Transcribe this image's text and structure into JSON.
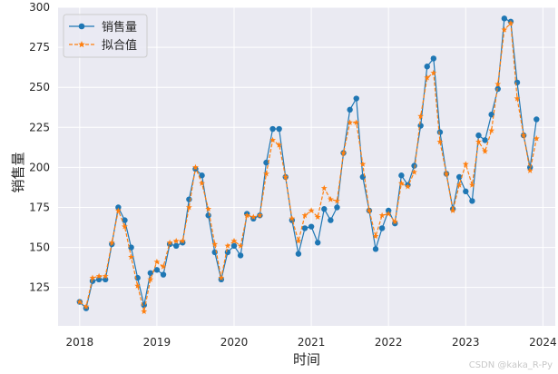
{
  "chart_data": {
    "type": "line",
    "xlabel": "时间",
    "ylabel": "销售量",
    "xlim": [
      2017.72,
      2024.16
    ],
    "ylim": [
      101,
      300
    ],
    "x_tick_values": [
      2018,
      2019,
      2020,
      2021,
      2022,
      2023,
      2024
    ],
    "x_tick_labels": [
      "2018",
      "2019",
      "2020",
      "2021",
      "2022",
      "2023",
      "2024"
    ],
    "y_tick_values": [
      125,
      150,
      175,
      200,
      225,
      250,
      275,
      300
    ],
    "y_tick_labels": [
      "125",
      "150",
      "175",
      "200",
      "225",
      "250",
      "275",
      "300"
    ],
    "grid": true,
    "legend_position": "top-left",
    "x_start": 2018.0,
    "x_step_per_point": 0.0833333,
    "series": [
      {
        "name": "销售量",
        "color": "#1f77b4",
        "line_style": "solid",
        "marker": "circle",
        "values": [
          116,
          112,
          129,
          130,
          130,
          152,
          175,
          167,
          150,
          131,
          114,
          134,
          136,
          133,
          152,
          151,
          153,
          180,
          199,
          195,
          170,
          147,
          130,
          147,
          151,
          145,
          171,
          168,
          170,
          203,
          224,
          224,
          194,
          167,
          146,
          162,
          163,
          153,
          174,
          167,
          175,
          209,
          236,
          243,
          194,
          173,
          149,
          162,
          173,
          165,
          195,
          189,
          201,
          226,
          263,
          268,
          222,
          196,
          174,
          194,
          185,
          179,
          220,
          217,
          233,
          249,
          293,
          291,
          253,
          220,
          200,
          230
        ]
      },
      {
        "name": "拟合值",
        "color": "#ff7f0e",
        "line_style": "dashed",
        "marker": "star",
        "values": [
          116,
          113,
          131,
          132,
          132,
          153,
          173,
          163,
          144,
          126,
          110,
          130,
          141,
          138,
          153,
          154,
          154,
          175,
          200,
          190,
          174,
          152,
          131,
          151,
          154,
          151,
          170,
          169,
          170,
          196,
          217,
          214,
          194,
          168,
          154,
          170,
          173,
          169,
          187,
          180,
          179,
          209,
          228,
          228,
          202,
          173,
          157,
          170,
          171,
          166,
          190,
          188,
          197,
          232,
          256,
          259,
          216,
          196,
          173,
          189,
          202,
          189,
          216,
          210,
          223,
          252,
          286,
          290,
          243,
          220,
          198,
          218
        ]
      }
    ]
  },
  "watermark": "CSDN @kaka_R-Py"
}
